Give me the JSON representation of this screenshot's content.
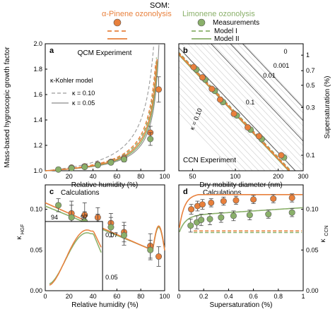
{
  "header": {
    "som": "SOM:",
    "alpha_pinene": "α-Pinene ozonolysis",
    "limonene": "Limonene ozonolysis",
    "legend": {
      "measurements": "Measurements",
      "model1": "Model I",
      "model2": "Model II"
    }
  },
  "colors": {
    "alpha_pinene": "#e8803c",
    "limonene": "#8ab06a",
    "kappa_dash": "#9a9a9a",
    "kappa_solid": "#8a8a8a"
  },
  "chart_data": [
    {
      "panel": "a",
      "type": "scatter",
      "title": "QCM Experiment",
      "xlabel": "Relative humidity (%)",
      "ylabel": "Mass-based hygroscopic growth factor",
      "xlim": [
        0,
        100
      ],
      "ylim": [
        1.0,
        2.0
      ],
      "xticks": [
        "0",
        "20",
        "40",
        "60",
        "80",
        "100"
      ],
      "yticks": [
        "1.0",
        "1.2",
        "1.4",
        "1.6",
        "1.8",
        "2.0"
      ],
      "kappa_legend": {
        "title": "κ-Kohler model",
        "dashed": "κ = 0.10",
        "solid": "κ = 0.05"
      },
      "series": [
        {
          "name": "α-Pinene ozonolysis",
          "x": [
            22,
            33,
            44,
            55,
            66,
            88,
            95
          ],
          "y": [
            1.025,
            1.035,
            1.05,
            1.07,
            1.1,
            1.3,
            1.64
          ],
          "err": [
            0.01,
            0.01,
            0.015,
            0.015,
            0.02,
            0.05,
            0.1
          ]
        },
        {
          "name": "Limonene ozonolysis",
          "x": [
            11,
            22,
            33,
            44,
            55,
            66,
            88
          ],
          "y": [
            1.01,
            1.02,
            1.03,
            1.045,
            1.065,
            1.09,
            1.25
          ],
          "err": [
            0.01,
            0.01,
            0.01,
            0.015,
            0.015,
            0.02,
            0.05
          ]
        }
      ]
    },
    {
      "panel": "b",
      "type": "scatter",
      "title": "CCN Experiment",
      "xlabel": "Dry mobility diameter (nm)",
      "ylabel": "Supersaturation (%)",
      "xscale": "log",
      "yscale": "log",
      "xlim": [
        40,
        300
      ],
      "ylim": [
        0.07,
        1.3
      ],
      "xticks": [
        "50",
        "100",
        "200",
        "300"
      ],
      "yticks": [
        "1",
        "0.7",
        "0.5",
        "0.3",
        "0.1"
      ],
      "kappa_labels": [
        "0",
        "0.001",
        "0.01",
        "0.1",
        "κ = 0.10"
      ],
      "series": [
        {
          "name": "α-Pinene ozonolysis",
          "x": [
            52,
            60,
            70,
            80,
            100,
            125,
            150,
            215
          ],
          "y": [
            0.76,
            0.6,
            0.46,
            0.36,
            0.26,
            0.19,
            0.155,
            0.1
          ]
        },
        {
          "name": "Limonene ozonolysis",
          "x": [
            52,
            60,
            70,
            80,
            100,
            125,
            150,
            215
          ],
          "y": [
            0.72,
            0.57,
            0.44,
            0.34,
            0.25,
            0.18,
            0.145,
            0.095
          ]
        }
      ]
    },
    {
      "panel": "c",
      "type": "scatter",
      "title": "Calculations",
      "xlabel": "Relative humidity (%)",
      "ylabel": "κHGF",
      "xlim": [
        0,
        100
      ],
      "ylim": [
        0,
        0.13
      ],
      "xticks": [
        "0",
        "20",
        "40",
        "60",
        "80",
        "100"
      ],
      "yticks": [
        "0.00",
        "0.05",
        "0.10"
      ],
      "inset": {
        "xticks": [
          "94",
          "97"
        ],
        "yticks": [
          "0.07",
          "0.05"
        ]
      },
      "series": [
        {
          "name": "α-Pinene ozonolysis",
          "x": [
            22,
            33,
            44,
            55,
            66,
            88,
            95
          ],
          "y": [
            0.095,
            0.093,
            0.09,
            0.083,
            0.072,
            0.055,
            0.042
          ],
          "err": [
            0.015,
            0.015,
            0.012,
            0.012,
            0.012,
            0.015,
            0.012
          ]
        },
        {
          "name": "Limonene ozonolysis",
          "x": [
            11,
            22,
            33,
            44,
            55,
            66,
            88
          ],
          "y": [
            0.105,
            0.09,
            0.085,
            0.082,
            0.078,
            0.068,
            0.05
          ],
          "err": [
            0.008,
            0.015,
            0.012,
            0.012,
            0.012,
            0.012,
            0.012
          ]
        }
      ]
    },
    {
      "panel": "d",
      "type": "scatter",
      "title": "Calculations",
      "xlabel": "Supersaturation (%)",
      "ylabel": "κCCN",
      "xlim": [
        0,
        1
      ],
      "ylim": [
        0,
        0.13
      ],
      "xticks": [
        "0",
        "0.2",
        "0.4",
        "0.6",
        "0.8",
        "1"
      ],
      "yticks": [
        "0.00",
        "0.05",
        "0.10"
      ],
      "series": [
        {
          "name": "α-Pinene ozonolysis",
          "x": [
            0.1,
            0.15,
            0.19,
            0.26,
            0.36,
            0.46,
            0.6,
            0.76,
            0.91
          ],
          "y": [
            0.1,
            0.104,
            0.106,
            0.108,
            0.11,
            0.111,
            0.112,
            0.113,
            0.114
          ],
          "err": [
            0.006,
            0.006,
            0.006,
            0.005,
            0.005,
            0.005,
            0.005,
            0.005,
            0.005
          ]
        },
        {
          "name": "Limonene ozonolysis",
          "x": [
            0.095,
            0.145,
            0.18,
            0.25,
            0.34,
            0.44,
            0.57,
            0.72,
            0.91
          ],
          "y": [
            0.08,
            0.084,
            0.087,
            0.088,
            0.09,
            0.092,
            0.093,
            0.094,
            0.096
          ],
          "err": [
            0.008,
            0.008,
            0.007,
            0.007,
            0.006,
            0.006,
            0.006,
            0.005,
            0.005
          ]
        }
      ]
    }
  ]
}
